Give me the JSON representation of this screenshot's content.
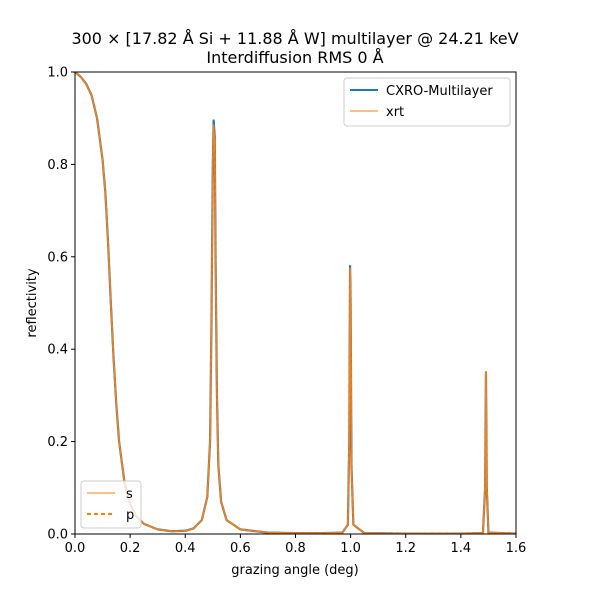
{
  "colors": {
    "cxro": "#1f77b4",
    "xrt": "#ff7f0e",
    "frame": "#000000",
    "legend_border": "#cccccc"
  },
  "chart_data": {
    "type": "line",
    "title": "300 × [17.82 Å Si + 11.88 Å W] multilayer @ 24.21 keV",
    "subtitle": "Interdiffusion RMS 0 Å",
    "xlabel": "grazing angle (deg)",
    "ylabel": "reflectivity",
    "xlim": [
      0,
      1.6
    ],
    "ylim": [
      0,
      1.0
    ],
    "xticks": [
      0.0,
      0.2,
      0.4,
      0.6,
      0.8,
      1.0,
      1.2,
      1.4,
      1.6
    ],
    "xtick_labels": [
      "0.0",
      "0.2",
      "0.4",
      "0.6",
      "0.8",
      "1.0",
      "1.2",
      "1.4",
      "1.6"
    ],
    "yticks": [
      0.0,
      0.2,
      0.4,
      0.6,
      0.8,
      1.0
    ],
    "ytick_labels": [
      "0.0",
      "0.2",
      "0.4",
      "0.6",
      "0.8",
      "1.0"
    ],
    "grid": false,
    "legend_sources": {
      "position": "upper-right",
      "entries": [
        "CXRO-Multilayer",
        "xrt"
      ]
    },
    "legend_polarization": {
      "position": "lower-left",
      "entries": [
        "s",
        "p"
      ]
    },
    "series": [
      {
        "name": "CXRO-Multilayer",
        "points": [
          [
            0.0,
            1.0
          ],
          [
            0.02,
            0.99
          ],
          [
            0.04,
            0.975
          ],
          [
            0.06,
            0.95
          ],
          [
            0.08,
            0.9
          ],
          [
            0.1,
            0.81
          ],
          [
            0.11,
            0.74
          ],
          [
            0.12,
            0.63
          ],
          [
            0.13,
            0.5
          ],
          [
            0.14,
            0.38
          ],
          [
            0.15,
            0.28
          ],
          [
            0.16,
            0.2
          ],
          [
            0.18,
            0.11
          ],
          [
            0.2,
            0.065
          ],
          [
            0.22,
            0.04
          ],
          [
            0.25,
            0.022
          ],
          [
            0.3,
            0.01
          ],
          [
            0.35,
            0.006
          ],
          [
            0.4,
            0.007
          ],
          [
            0.43,
            0.012
          ],
          [
            0.46,
            0.03
          ],
          [
            0.48,
            0.08
          ],
          [
            0.49,
            0.2
          ],
          [
            0.495,
            0.45
          ],
          [
            0.5,
            0.8
          ],
          [
            0.503,
            0.895
          ],
          [
            0.507,
            0.86
          ],
          [
            0.51,
            0.6
          ],
          [
            0.515,
            0.3
          ],
          [
            0.52,
            0.15
          ],
          [
            0.53,
            0.07
          ],
          [
            0.55,
            0.03
          ],
          [
            0.6,
            0.01
          ],
          [
            0.7,
            0.003
          ],
          [
            0.8,
            0.002
          ],
          [
            0.9,
            0.002
          ],
          [
            0.97,
            0.003
          ],
          [
            0.99,
            0.02
          ],
          [
            0.995,
            0.2
          ],
          [
            0.998,
            0.58
          ],
          [
            1.0,
            0.5
          ],
          [
            1.003,
            0.15
          ],
          [
            1.01,
            0.02
          ],
          [
            1.05,
            0.002
          ],
          [
            1.2,
            0.001
          ],
          [
            1.4,
            0.001
          ],
          [
            1.48,
            0.002
          ],
          [
            1.488,
            0.1
          ],
          [
            1.491,
            0.35
          ],
          [
            1.494,
            0.1
          ],
          [
            1.5,
            0.003
          ],
          [
            1.6,
            0.001
          ]
        ]
      },
      {
        "name": "xrt",
        "points": [
          [
            0.0,
            1.0
          ],
          [
            0.02,
            0.99
          ],
          [
            0.04,
            0.975
          ],
          [
            0.06,
            0.95
          ],
          [
            0.08,
            0.9
          ],
          [
            0.1,
            0.81
          ],
          [
            0.11,
            0.74
          ],
          [
            0.12,
            0.63
          ],
          [
            0.13,
            0.5
          ],
          [
            0.14,
            0.38
          ],
          [
            0.15,
            0.28
          ],
          [
            0.16,
            0.2
          ],
          [
            0.18,
            0.11
          ],
          [
            0.2,
            0.065
          ],
          [
            0.22,
            0.04
          ],
          [
            0.25,
            0.022
          ],
          [
            0.3,
            0.01
          ],
          [
            0.35,
            0.006
          ],
          [
            0.4,
            0.007
          ],
          [
            0.43,
            0.012
          ],
          [
            0.46,
            0.03
          ],
          [
            0.48,
            0.08
          ],
          [
            0.49,
            0.2
          ],
          [
            0.495,
            0.45
          ],
          [
            0.5,
            0.8
          ],
          [
            0.503,
            0.885
          ],
          [
            0.507,
            0.85
          ],
          [
            0.51,
            0.6
          ],
          [
            0.515,
            0.3
          ],
          [
            0.52,
            0.15
          ],
          [
            0.53,
            0.07
          ],
          [
            0.55,
            0.03
          ],
          [
            0.6,
            0.01
          ],
          [
            0.7,
            0.003
          ],
          [
            0.8,
            0.002
          ],
          [
            0.9,
            0.002
          ],
          [
            0.97,
            0.003
          ],
          [
            0.99,
            0.02
          ],
          [
            0.995,
            0.2
          ],
          [
            0.998,
            0.575
          ],
          [
            1.0,
            0.5
          ],
          [
            1.003,
            0.15
          ],
          [
            1.01,
            0.02
          ],
          [
            1.05,
            0.002
          ],
          [
            1.2,
            0.001
          ],
          [
            1.4,
            0.001
          ],
          [
            1.48,
            0.002
          ],
          [
            1.488,
            0.1
          ],
          [
            1.491,
            0.35
          ],
          [
            1.494,
            0.1
          ],
          [
            1.5,
            0.003
          ],
          [
            1.6,
            0.001
          ]
        ]
      }
    ]
  }
}
